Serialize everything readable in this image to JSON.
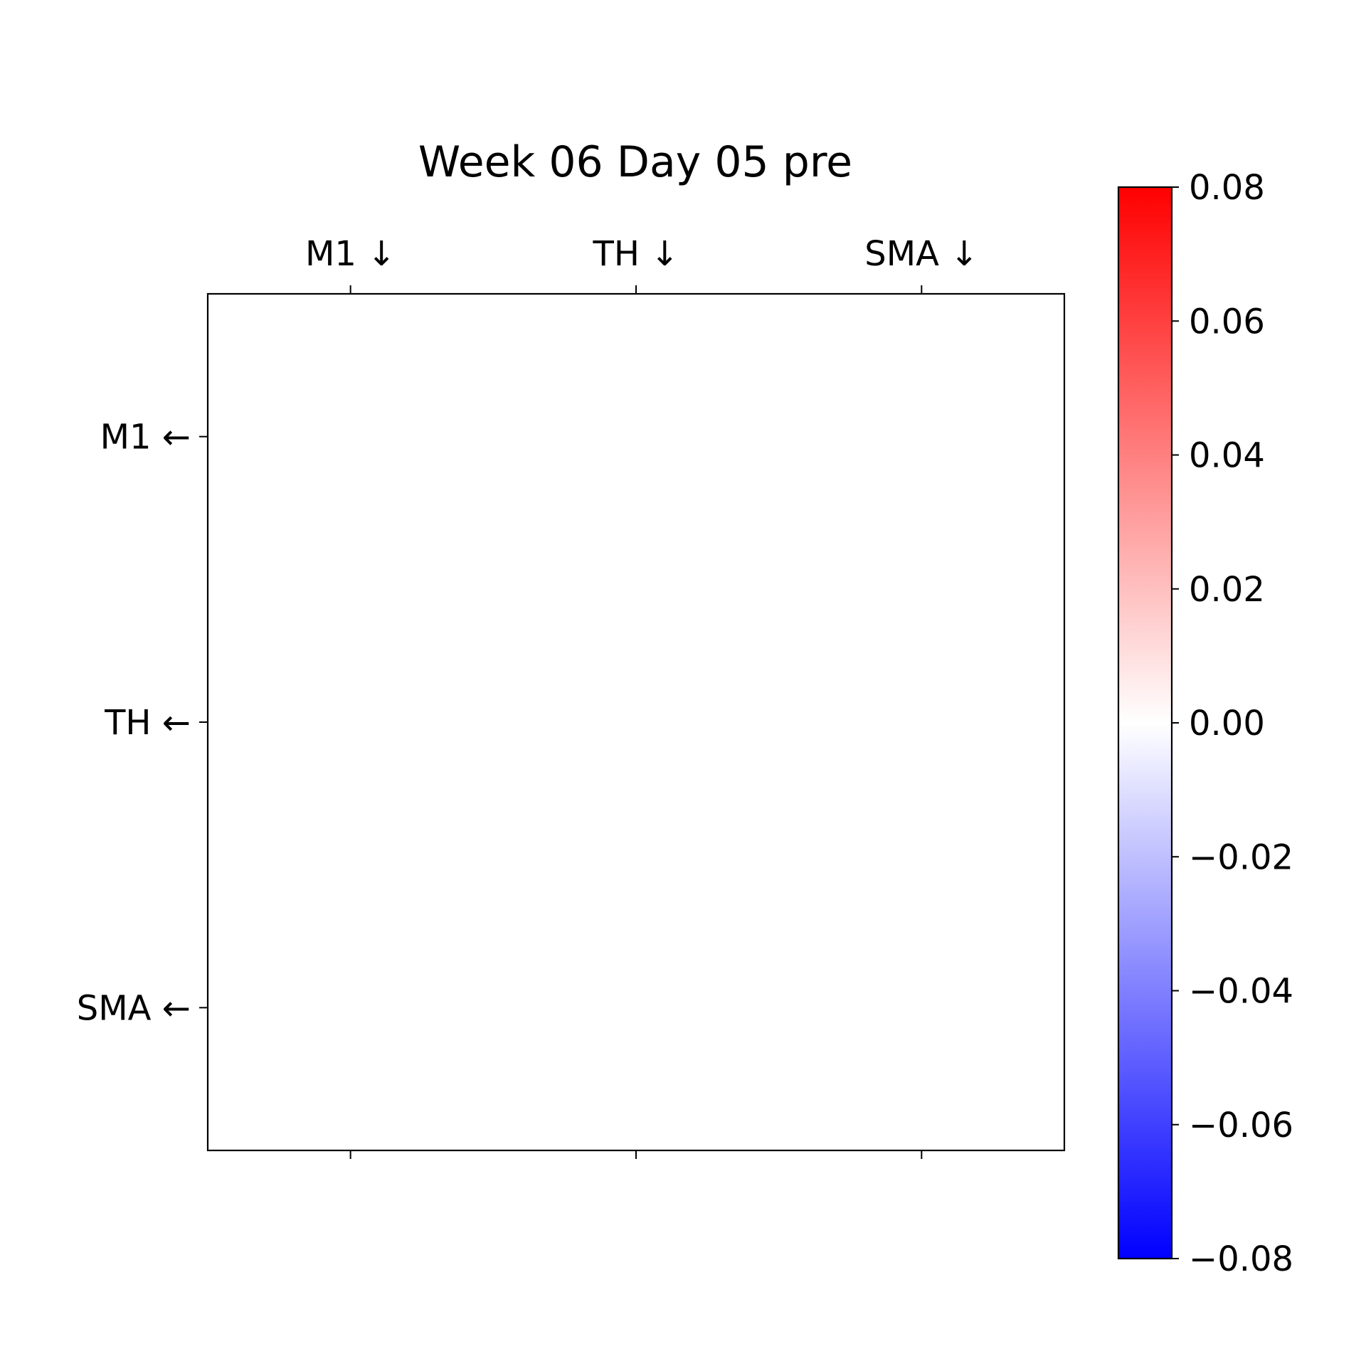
{
  "chart_data": {
    "type": "heatmap",
    "title": "Week 06 Day 05 pre",
    "x_categories": [
      "M1 ↓",
      "TH ↓",
      "SMA ↓"
    ],
    "y_categories": [
      "M1 ←",
      "TH ←",
      "SMA ←"
    ],
    "values": [
      [
        0.0,
        0.0,
        0.0
      ],
      [
        0.0,
        0.0,
        0.0
      ],
      [
        0.0,
        0.0,
        0.0
      ]
    ],
    "colorbar": {
      "min": -0.08,
      "max": 0.08,
      "ticks": [
        0.08,
        0.06,
        0.04,
        0.02,
        0.0,
        -0.02,
        -0.04,
        -0.06,
        -0.08
      ],
      "tick_labels": [
        "0.08",
        "0.06",
        "0.04",
        "0.02",
        "0.00",
        "−0.02",
        "−0.04",
        "−0.06",
        "−0.08"
      ],
      "colormap": "bwr",
      "colors": {
        "low": "#0000ff",
        "mid": "#ffffff",
        "high": "#ff0000"
      }
    },
    "x_axis_position": "top",
    "grid": false
  }
}
